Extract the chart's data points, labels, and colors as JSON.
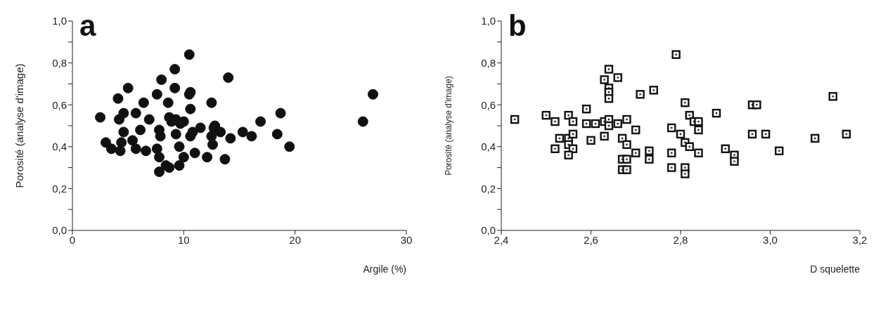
{
  "chart_data": [
    {
      "type": "scatter",
      "title": "a",
      "xlabel": "Argile  (%)",
      "ylabel": "Porosité  (analyse d'image)",
      "marker": "circle",
      "grid": false,
      "legend": false,
      "xlim": [
        0,
        30
      ],
      "xticks": [
        0,
        10,
        20,
        30
      ],
      "ylim": [
        0,
        1
      ],
      "yticks": [
        {
          "value": 0,
          "label": "0,0"
        },
        {
          "value": 0.1,
          "label": null
        },
        {
          "value": 0.2,
          "label": "0,2"
        },
        {
          "value": 0.3,
          "label": null
        },
        {
          "value": 0.4,
          "label": "0,4"
        },
        {
          "value": 0.5,
          "label": null
        },
        {
          "value": 0.6,
          "label": "0,6"
        },
        {
          "value": 0.7,
          "label": null
        },
        {
          "value": 0.8,
          "label": "0,8"
        },
        {
          "value": 0.9,
          "label": null
        },
        {
          "value": 1,
          "label": "1,0"
        }
      ],
      "series": [
        {
          "color": "#111111",
          "x": [
            10.5,
            9.2,
            8.0,
            5.0,
            9.2,
            10.6,
            10.5,
            7.6,
            4.1,
            6.4,
            8.6,
            12.5,
            10.6,
            5.7,
            4.6,
            2.5,
            4.2,
            6.9,
            8.7,
            9.3,
            10.0,
            8.9,
            9.7,
            11.5,
            4.6,
            6.1,
            7.8,
            7.9,
            9.3,
            10.8,
            10.6,
            12.5,
            12.7,
            3.0,
            4.4,
            5.4,
            9.6,
            12.6,
            3.5,
            4.3,
            5.7,
            6.6,
            7.6,
            7.8,
            10.0,
            11.0,
            12.1,
            8.4,
            7.8,
            9.6,
            8.7,
            14.0,
            18.7,
            16.9,
            12.8,
            13.3,
            14.2,
            15.3,
            16.1,
            18.4,
            19.5,
            13.7,
            27.0,
            26.1
          ],
          "values": [
            0.84,
            0.77,
            0.72,
            0.68,
            0.68,
            0.66,
            0.65,
            0.65,
            0.63,
            0.61,
            0.61,
            0.61,
            0.58,
            0.56,
            0.56,
            0.54,
            0.53,
            0.53,
            0.54,
            0.53,
            0.52,
            0.52,
            0.51,
            0.49,
            0.47,
            0.48,
            0.48,
            0.45,
            0.46,
            0.47,
            0.45,
            0.45,
            0.49,
            0.42,
            0.42,
            0.43,
            0.4,
            0.41,
            0.39,
            0.38,
            0.39,
            0.38,
            0.39,
            0.35,
            0.35,
            0.37,
            0.35,
            0.31,
            0.28,
            0.31,
            0.3,
            0.73,
            0.56,
            0.52,
            0.5,
            0.47,
            0.44,
            0.47,
            0.45,
            0.46,
            0.4,
            0.34,
            0.65,
            0.52
          ]
        }
      ]
    },
    {
      "type": "scatter",
      "title": "b",
      "xlabel": "D squelette",
      "ylabel": "Porosité (analyse d'image)",
      "marker": "square",
      "grid": false,
      "legend": false,
      "xlim": [
        2.4,
        3.2
      ],
      "xticks": [
        {
          "value": 2.4,
          "label": "2,4"
        },
        {
          "value": 2.6,
          "label": "2,6"
        },
        {
          "value": 2.8,
          "label": "2,8"
        },
        {
          "value": 3.0,
          "label": "3,0"
        },
        {
          "value": 3.2,
          "label": "3,2"
        }
      ],
      "ylim": [
        0,
        1
      ],
      "yticks": [
        {
          "value": 0,
          "label": "0,0"
        },
        {
          "value": 0.1,
          "label": null
        },
        {
          "value": 0.2,
          "label": "0,2"
        },
        {
          "value": 0.3,
          "label": null
        },
        {
          "value": 0.4,
          "label": "0,4"
        },
        {
          "value": 0.5,
          "label": null
        },
        {
          "value": 0.6,
          "label": "0,6"
        },
        {
          "value": 0.7,
          "label": null
        },
        {
          "value": 0.8,
          "label": "0,8"
        },
        {
          "value": 0.9,
          "label": null
        },
        {
          "value": 1,
          "label": "1,0"
        }
      ],
      "series": [
        {
          "color": "#111111",
          "x": [
            2.43,
            2.5,
            2.52,
            2.55,
            2.56,
            2.59,
            2.59,
            2.61,
            2.63,
            2.64,
            2.64,
            2.66,
            2.68,
            2.64,
            2.66,
            2.63,
            2.64,
            2.64,
            2.64,
            2.71,
            2.74,
            2.79,
            2.53,
            2.55,
            2.56,
            2.55,
            2.56,
            2.52,
            2.55,
            2.6,
            2.63,
            2.67,
            2.68,
            2.7,
            2.7,
            2.67,
            2.68,
            2.67,
            2.68,
            2.73,
            2.73,
            2.78,
            2.78,
            2.78,
            2.81,
            2.82,
            2.83,
            2.84,
            2.84,
            2.88,
            2.8,
            2.81,
            2.82,
            2.84,
            2.81,
            2.81,
            2.9,
            2.92,
            2.92,
            2.96,
            2.97,
            2.96,
            2.99,
            3.02,
            3.1,
            3.14,
            3.17
          ],
          "values": [
            0.53,
            0.55,
            0.52,
            0.55,
            0.52,
            0.58,
            0.51,
            0.51,
            0.52,
            0.53,
            0.5,
            0.51,
            0.53,
            0.77,
            0.73,
            0.72,
            0.68,
            0.66,
            0.63,
            0.65,
            0.67,
            0.84,
            0.44,
            0.44,
            0.46,
            0.41,
            0.39,
            0.39,
            0.36,
            0.43,
            0.45,
            0.44,
            0.41,
            0.48,
            0.37,
            0.34,
            0.34,
            0.29,
            0.29,
            0.38,
            0.34,
            0.49,
            0.37,
            0.3,
            0.61,
            0.55,
            0.52,
            0.52,
            0.48,
            0.56,
            0.46,
            0.42,
            0.4,
            0.37,
            0.3,
            0.27,
            0.39,
            0.36,
            0.33,
            0.6,
            0.6,
            0.46,
            0.46,
            0.38,
            0.44,
            0.64,
            0.46
          ]
        }
      ]
    }
  ]
}
